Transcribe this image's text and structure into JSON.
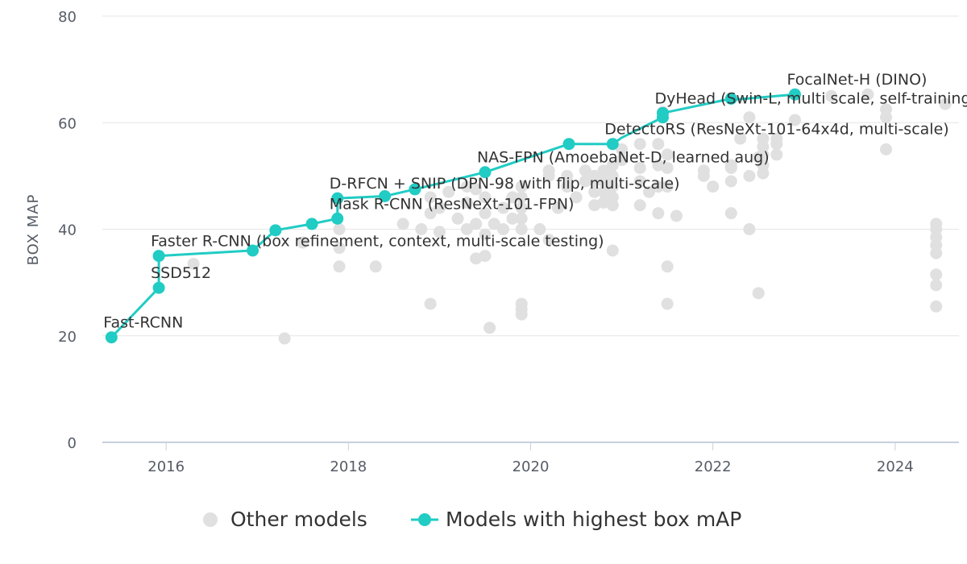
{
  "chart_data": {
    "type": "scatter",
    "title": "",
    "xlabel": "",
    "ylabel": "BOX MAP",
    "xlim": [
      2015.3,
      2024.7
    ],
    "ylim": [
      0,
      80
    ],
    "x_ticks": [
      2016,
      2018,
      2020,
      2022,
      2024
    ],
    "y_ticks": [
      0,
      20,
      40,
      60,
      80
    ],
    "grid": "horizontal",
    "legend_position": "bottom-center",
    "colors": {
      "other": "#e0e0e0",
      "best": "#21ccc4"
    },
    "series": [
      {
        "name": "Other models",
        "kind": "scatter",
        "points": [
          [
            2016.3,
            33.5
          ],
          [
            2017.3,
            19.5
          ],
          [
            2017.5,
            37.5
          ],
          [
            2017.9,
            33
          ],
          [
            2017.9,
            36.5
          ],
          [
            2017.9,
            40
          ],
          [
            2018.3,
            33
          ],
          [
            2018.6,
            41
          ],
          [
            2018.8,
            40
          ],
          [
            2018.9,
            26
          ],
          [
            2018.9,
            43
          ],
          [
            2018.9,
            46
          ],
          [
            2019.0,
            39.5
          ],
          [
            2019.0,
            44
          ],
          [
            2019.1,
            47
          ],
          [
            2019.2,
            42
          ],
          [
            2019.3,
            40
          ],
          [
            2019.3,
            45
          ],
          [
            2019.3,
            48
          ],
          [
            2019.4,
            34.5
          ],
          [
            2019.4,
            41
          ],
          [
            2019.4,
            47.5
          ],
          [
            2019.5,
            35
          ],
          [
            2019.5,
            39
          ],
          [
            2019.5,
            43
          ],
          [
            2019.5,
            46
          ],
          [
            2019.55,
            21.5
          ],
          [
            2019.6,
            41
          ],
          [
            2019.7,
            44
          ],
          [
            2019.7,
            40
          ],
          [
            2019.8,
            42
          ],
          [
            2019.8,
            46
          ],
          [
            2019.9,
            24
          ],
          [
            2019.9,
            25
          ],
          [
            2019.9,
            26
          ],
          [
            2019.9,
            40
          ],
          [
            2019.9,
            42
          ],
          [
            2019.9,
            44
          ],
          [
            2019.9,
            46
          ],
          [
            2019.9,
            48
          ],
          [
            2020.1,
            40
          ],
          [
            2020.2,
            38
          ],
          [
            2020.2,
            50
          ],
          [
            2020.2,
            51
          ],
          [
            2020.3,
            44
          ],
          [
            2020.4,
            48
          ],
          [
            2020.4,
            50
          ],
          [
            2020.5,
            46
          ],
          [
            2020.6,
            49
          ],
          [
            2020.6,
            51
          ],
          [
            2020.7,
            44.5
          ],
          [
            2020.7,
            47
          ],
          [
            2020.7,
            49
          ],
          [
            2020.7,
            50
          ],
          [
            2020.8,
            45
          ],
          [
            2020.8,
            47
          ],
          [
            2020.8,
            49
          ],
          [
            2020.8,
            51
          ],
          [
            2020.9,
            36
          ],
          [
            2020.9,
            44.5
          ],
          [
            2020.9,
            46
          ],
          [
            2020.9,
            48
          ],
          [
            2020.9,
            50
          ],
          [
            2020.9,
            52
          ],
          [
            2021.0,
            53
          ],
          [
            2021.0,
            55
          ],
          [
            2021.2,
            44.5
          ],
          [
            2021.2,
            49
          ],
          [
            2021.2,
            51.5
          ],
          [
            2021.2,
            56
          ],
          [
            2021.3,
            47
          ],
          [
            2021.4,
            43
          ],
          [
            2021.4,
            48
          ],
          [
            2021.4,
            52
          ],
          [
            2021.4,
            56
          ],
          [
            2021.45,
            62
          ],
          [
            2021.5,
            26
          ],
          [
            2021.5,
            33
          ],
          [
            2021.5,
            48
          ],
          [
            2021.5,
            51.5
          ],
          [
            2021.5,
            54
          ],
          [
            2021.6,
            42.5
          ],
          [
            2021.9,
            51
          ],
          [
            2021.9,
            50
          ],
          [
            2022.0,
            48
          ],
          [
            2022.2,
            43
          ],
          [
            2022.2,
            49
          ],
          [
            2022.2,
            51.5
          ],
          [
            2022.2,
            52
          ],
          [
            2022.3,
            57
          ],
          [
            2022.4,
            40
          ],
          [
            2022.4,
            50
          ],
          [
            2022.4,
            61
          ],
          [
            2022.5,
            28
          ],
          [
            2022.5,
            53.5
          ],
          [
            2022.55,
            50.5
          ],
          [
            2022.55,
            52
          ],
          [
            2022.55,
            54
          ],
          [
            2022.55,
            55.5
          ],
          [
            2022.55,
            57
          ],
          [
            2022.7,
            54
          ],
          [
            2022.7,
            56
          ],
          [
            2022.7,
            57
          ],
          [
            2022.9,
            60.5
          ],
          [
            2023.3,
            65
          ],
          [
            2023.7,
            65.3
          ],
          [
            2023.9,
            55
          ],
          [
            2023.9,
            61
          ],
          [
            2023.9,
            62.5
          ],
          [
            2024.45,
            25.5
          ],
          [
            2024.45,
            29.5
          ],
          [
            2024.45,
            31.5
          ],
          [
            2024.45,
            35.5
          ],
          [
            2024.45,
            37
          ],
          [
            2024.45,
            38.5
          ],
          [
            2024.45,
            40
          ],
          [
            2024.45,
            41
          ],
          [
            2024.55,
            63.5
          ]
        ]
      },
      {
        "name": "Models with highest box mAP",
        "kind": "line",
        "points": [
          [
            2015.4,
            19.7
          ],
          [
            2015.92,
            29
          ],
          [
            2015.92,
            35
          ],
          [
            2016.95,
            36
          ],
          [
            2017.2,
            39.8
          ],
          [
            2017.6,
            41
          ],
          [
            2017.88,
            42
          ],
          [
            2017.88,
            45.8
          ],
          [
            2018.4,
            46.2
          ],
          [
            2018.73,
            47.5
          ],
          [
            2019.5,
            50.7
          ],
          [
            2020.42,
            56
          ],
          [
            2020.9,
            56
          ],
          [
            2021.0,
            57.2
          ],
          [
            2021.45,
            61
          ],
          [
            2021.45,
            61.8
          ],
          [
            2022.2,
            64.5
          ],
          [
            2022.28,
            64.4
          ],
          [
            2022.9,
            65.3
          ],
          [
            2022.95,
            65.8
          ]
        ],
        "markers": [
          [
            2015.4,
            19.7
          ],
          [
            2015.92,
            29
          ],
          [
            2015.92,
            35
          ],
          [
            2016.95,
            36
          ],
          [
            2017.2,
            39.8
          ],
          [
            2017.6,
            41
          ],
          [
            2017.88,
            42
          ],
          [
            2017.88,
            45.8
          ],
          [
            2018.4,
            46.2
          ],
          [
            2018.73,
            47.5
          ],
          [
            2019.5,
            50.7
          ],
          [
            2020.42,
            56
          ],
          [
            2020.9,
            56
          ],
          [
            2021.45,
            61
          ],
          [
            2021.45,
            61.8
          ],
          [
            2022.2,
            64.5
          ],
          [
            2022.9,
            65.3
          ]
        ]
      }
    ],
    "annotations": [
      {
        "label": "Fast-RCNN",
        "x": 2015.4,
        "y": 19.7
      },
      {
        "label": "SSD512",
        "x": 2015.92,
        "y": 29
      },
      {
        "label": "Faster R-CNN (box refinement, context, multi-scale testing)",
        "x": 2015.92,
        "y": 35
      },
      {
        "label": "Mask R-CNN (ResNeXt-101-FPN)",
        "x": 2017.88,
        "y": 42
      },
      {
        "label": "D-RFCN + SNIP (DPN-98 with flip, multi-scale)",
        "x": 2017.88,
        "y": 45.8
      },
      {
        "label": "NAS-FPN (AmoebaNet-D, learned aug)",
        "x": 2019.5,
        "y": 50.7
      },
      {
        "label": "DetectoRS (ResNeXt-101-64x4d, multi-scale)",
        "x": 2020.9,
        "y": 56
      },
      {
        "label": "DyHead (Swin-L, multi scale, self-training)",
        "x": 2021.45,
        "y": 61.8
      },
      {
        "label": "FocalNet-H (DINO)",
        "x": 2022.9,
        "y": 65.3
      }
    ]
  },
  "legend": {
    "items": [
      {
        "label": "Other models"
      },
      {
        "label": "Models with highest box mAP"
      }
    ]
  }
}
